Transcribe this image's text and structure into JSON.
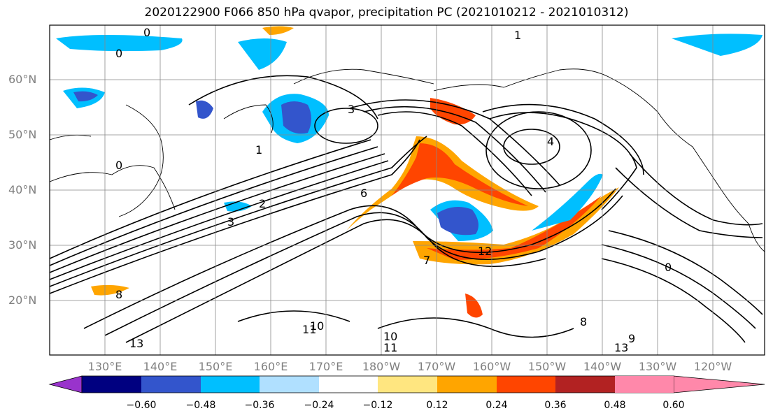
{
  "title": "2020122900 F066 850 hPa qvapor, precipitation PC (2021010212 - 2021010312)",
  "lat_labels": [
    "60°N",
    "50°N",
    "40°N",
    "30°N",
    "20°N"
  ],
  "lon_labels": [
    "130°E",
    "140°E",
    "150°E",
    "160°E",
    "170°E",
    "180°W",
    "170°W",
    "160°W",
    "150°W",
    "140°W",
    "130°W",
    "120°W"
  ],
  "colorbar": {
    "colors": [
      "#9933cc",
      "#000080",
      "#3355cc",
      "#00bfff",
      "#b0e0ff",
      "#ffffff",
      "#ffe680",
      "#ffa500",
      "#ff4500",
      "#b22222",
      "#ff88aa"
    ],
    "tick_labels": [
      "−0.60",
      "−0.48",
      "−0.36",
      "−0.24",
      "−0.12",
      "0.12",
      "0.24",
      "0.36",
      "0.48",
      "0.60"
    ]
  },
  "contour_labels": [
    "0",
    "0",
    "0",
    "0",
    "1",
    "1",
    "2",
    "3",
    "3",
    "4",
    "6",
    "7",
    "8",
    "8",
    "9",
    "10",
    "10",
    "11",
    "11",
    "12",
    "13",
    "13"
  ]
}
